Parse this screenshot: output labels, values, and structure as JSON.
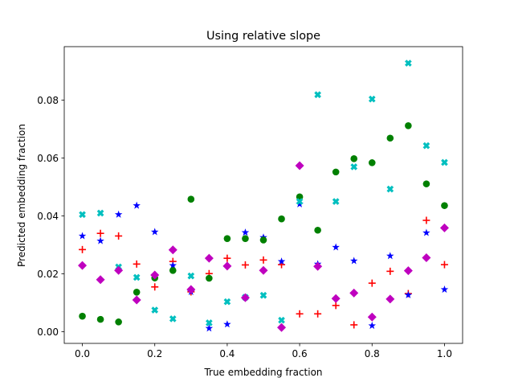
{
  "chart_data": {
    "type": "scatter",
    "title": "Using relative slope",
    "xlabel": "True embedding fraction",
    "ylabel": "Predicted embedding fraction",
    "xlim": [
      -0.05,
      1.05
    ],
    "ylim": [
      -0.004,
      0.0985
    ],
    "x_ticks": [
      0.0,
      0.2,
      0.4,
      0.6,
      0.8,
      1.0
    ],
    "x_tick_labels": [
      "0.0",
      "0.2",
      "0.4",
      "0.6",
      "0.8",
      "1.0"
    ],
    "y_ticks": [
      0.0,
      0.02,
      0.04,
      0.06,
      0.08
    ],
    "y_tick_labels": [
      "0.00",
      "0.02",
      "0.04",
      "0.06",
      "0.08"
    ],
    "grid": false,
    "series": [
      {
        "marker": "plus",
        "color": "#ff0000",
        "x": [
          0.0,
          0.05,
          0.1,
          0.15,
          0.2,
          0.25,
          0.3,
          0.35,
          0.4,
          0.45,
          0.5,
          0.55,
          0.6,
          0.65,
          0.7,
          0.75,
          0.8,
          0.85,
          0.9,
          0.95,
          1.0
        ],
        "y": [
          0.0284,
          0.034,
          0.0331,
          0.0234,
          0.0155,
          0.0243,
          0.0138,
          0.0201,
          0.0254,
          0.0231,
          0.0248,
          0.0232,
          0.0062,
          0.0062,
          0.0091,
          0.0024,
          0.0168,
          0.0209,
          0.0132,
          0.0385,
          0.0232
        ]
      },
      {
        "marker": "star",
        "color": "#0000ff",
        "x": [
          0.0,
          0.05,
          0.1,
          0.15,
          0.2,
          0.25,
          0.3,
          0.35,
          0.4,
          0.45,
          0.5,
          0.55,
          0.6,
          0.65,
          0.7,
          0.75,
          0.8,
          0.85,
          0.9,
          0.95,
          1.0
        ],
        "y": [
          0.0331,
          0.0314,
          0.0405,
          0.0436,
          0.0345,
          0.0229,
          0.0138,
          0.0012,
          0.0026,
          0.0343,
          0.0326,
          0.0243,
          0.0441,
          0.0234,
          0.0292,
          0.0245,
          0.0021,
          0.0262,
          0.0127,
          0.0342,
          0.0146
        ]
      },
      {
        "marker": "circle",
        "color": "#008000",
        "x": [
          0.0,
          0.05,
          0.1,
          0.15,
          0.2,
          0.25,
          0.3,
          0.35,
          0.4,
          0.45,
          0.5,
          0.55,
          0.6,
          0.65,
          0.7,
          0.75,
          0.8,
          0.85,
          0.9,
          0.95,
          1.0
        ],
        "y": [
          0.0054,
          0.0043,
          0.0034,
          0.0137,
          0.0186,
          0.0212,
          0.0458,
          0.0185,
          0.0322,
          0.0322,
          0.0317,
          0.039,
          0.0466,
          0.0351,
          0.0552,
          0.0598,
          0.0584,
          0.0669,
          0.0712,
          0.0511,
          0.0436
        ]
      },
      {
        "marker": "x",
        "color": "#00bfbf",
        "x": [
          0.0,
          0.05,
          0.1,
          0.15,
          0.2,
          0.25,
          0.3,
          0.35,
          0.4,
          0.45,
          0.5,
          0.55,
          0.6,
          0.65,
          0.7,
          0.75,
          0.8,
          0.85,
          0.9,
          0.95,
          1.0
        ],
        "y": [
          0.0405,
          0.041,
          0.0224,
          0.0188,
          0.0075,
          0.0045,
          0.0193,
          0.0031,
          0.0104,
          0.0119,
          0.0126,
          0.004,
          0.045,
          0.0819,
          0.045,
          0.057,
          0.0804,
          0.0493,
          0.0928,
          0.0643,
          0.0585
        ]
      },
      {
        "marker": "diamond",
        "color": "#bf00bf",
        "x": [
          0.0,
          0.05,
          0.1,
          0.15,
          0.2,
          0.25,
          0.3,
          0.35,
          0.4,
          0.45,
          0.5,
          0.55,
          0.6,
          0.65,
          0.7,
          0.75,
          0.8,
          0.85,
          0.9,
          0.95,
          1.0
        ],
        "y": [
          0.0229,
          0.018,
          0.0212,
          0.011,
          0.0196,
          0.0283,
          0.0146,
          0.0254,
          0.0227,
          0.0118,
          0.0212,
          0.0015,
          0.0574,
          0.0226,
          0.0115,
          0.0134,
          0.0051,
          0.0113,
          0.0211,
          0.0256,
          0.0359
        ]
      }
    ]
  }
}
